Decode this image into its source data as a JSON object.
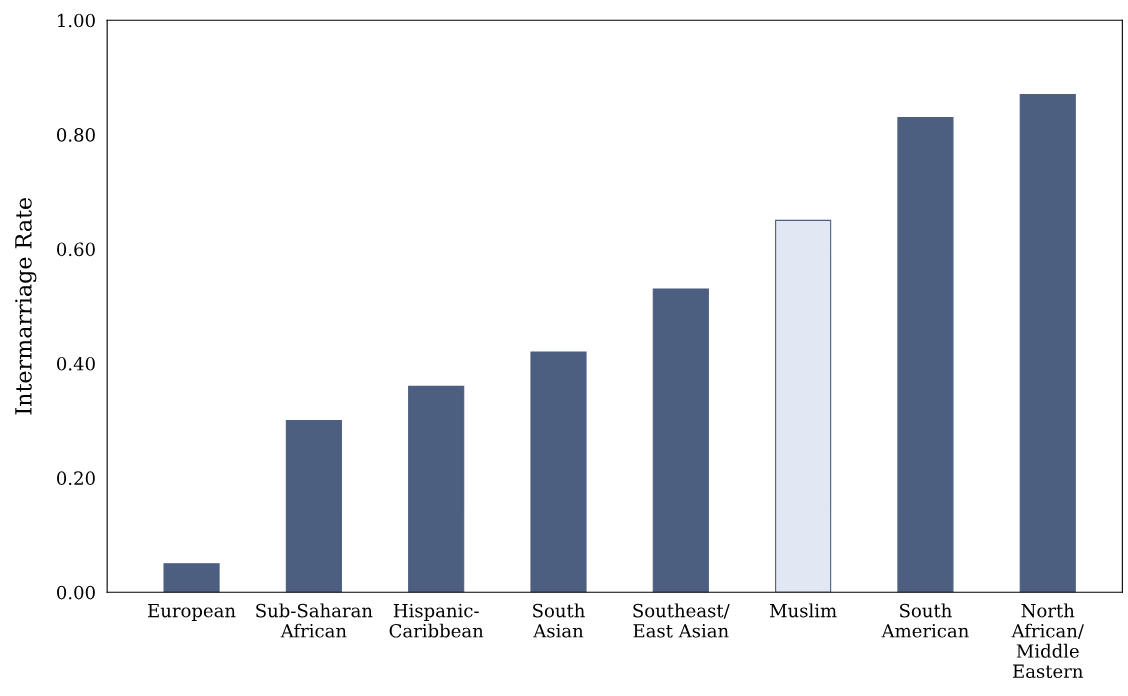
{
  "chart_data": {
    "type": "bar",
    "ylabel": "Intermarriage Rate",
    "categories": [
      "European",
      "Sub-Saharan\nAfrican",
      "Hispanic-\nCaribbean",
      "South\nAsian",
      "Southeast/\nEast Asian",
      "Muslim",
      "South\nAmerican",
      "North\nAfrican/\nMiddle\nEastern"
    ],
    "values": [
      0.05,
      0.3,
      0.36,
      0.42,
      0.53,
      0.65,
      0.83,
      0.87
    ],
    "colors": [
      "#4c5f80",
      "#4c5f80",
      "#4c5f80",
      "#4c5f80",
      "#4c5f80",
      "#e1e8f4",
      "#4c5f80",
      "#4c5f80"
    ],
    "ylim": [
      0,
      1
    ],
    "yticks": [
      {
        "value": 0,
        "label": "0.00"
      },
      {
        "value": 0.2,
        "label": "0.20"
      },
      {
        "value": 0.4,
        "label": "0.40"
      },
      {
        "value": 0.6,
        "label": "0.60"
      },
      {
        "value": 0.8,
        "label": "0.80"
      },
      {
        "value": 1,
        "label": "1.00"
      }
    ],
    "grid": false,
    "legend": false
  }
}
